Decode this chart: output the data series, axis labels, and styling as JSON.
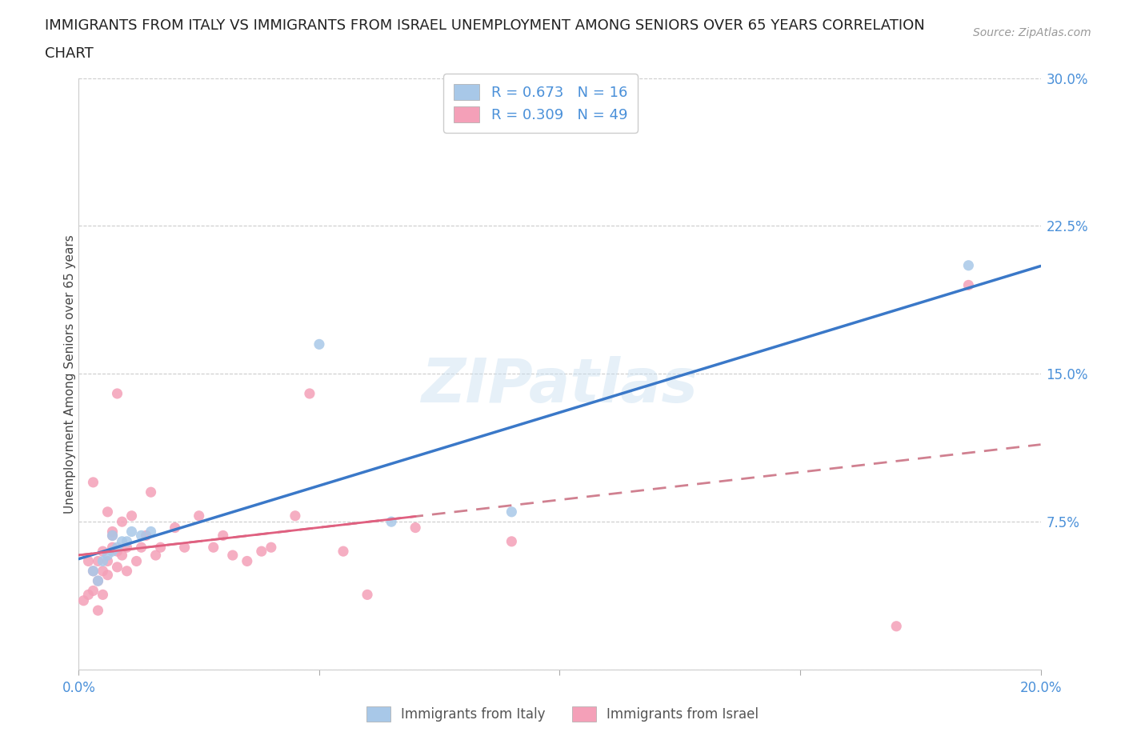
{
  "title_line1": "IMMIGRANTS FROM ITALY VS IMMIGRANTS FROM ISRAEL UNEMPLOYMENT AMONG SENIORS OVER 65 YEARS CORRELATION",
  "title_line2": "CHART",
  "source_text": "Source: ZipAtlas.com",
  "ylabel": "Unemployment Among Seniors over 65 years",
  "xlabel": "",
  "xlim": [
    0.0,
    0.2
  ],
  "ylim": [
    0.0,
    0.3
  ],
  "xticks": [
    0.0,
    0.05,
    0.1,
    0.15,
    0.2
  ],
  "yticks": [
    0.0,
    0.075,
    0.15,
    0.225,
    0.3
  ],
  "italy_color": "#a8c8e8",
  "israel_color": "#f4a0b8",
  "italy_line_color": "#3a78c8",
  "israel_line_color": "#e06080",
  "israel_dashed_color": "#d08090",
  "R_italy": 0.673,
  "N_italy": 16,
  "R_israel": 0.309,
  "N_israel": 49,
  "watermark": "ZIPatlas",
  "italy_scatter_x": [
    0.003,
    0.004,
    0.005,
    0.006,
    0.007,
    0.007,
    0.008,
    0.009,
    0.01,
    0.011,
    0.013,
    0.015,
    0.05,
    0.065,
    0.09,
    0.185
  ],
  "italy_scatter_y": [
    0.05,
    0.045,
    0.055,
    0.058,
    0.06,
    0.068,
    0.062,
    0.065,
    0.065,
    0.07,
    0.068,
    0.07,
    0.165,
    0.075,
    0.08,
    0.205
  ],
  "israel_scatter_x": [
    0.001,
    0.002,
    0.002,
    0.003,
    0.003,
    0.003,
    0.004,
    0.004,
    0.004,
    0.005,
    0.005,
    0.005,
    0.006,
    0.006,
    0.006,
    0.007,
    0.007,
    0.007,
    0.008,
    0.008,
    0.008,
    0.009,
    0.009,
    0.01,
    0.01,
    0.011,
    0.012,
    0.013,
    0.014,
    0.015,
    0.016,
    0.017,
    0.02,
    0.022,
    0.025,
    0.028,
    0.03,
    0.032,
    0.035,
    0.038,
    0.04,
    0.045,
    0.048,
    0.055,
    0.06,
    0.07,
    0.09,
    0.17,
    0.185
  ],
  "israel_scatter_y": [
    0.035,
    0.038,
    0.055,
    0.04,
    0.05,
    0.095,
    0.03,
    0.045,
    0.055,
    0.038,
    0.05,
    0.06,
    0.048,
    0.055,
    0.08,
    0.062,
    0.068,
    0.07,
    0.052,
    0.06,
    0.14,
    0.058,
    0.075,
    0.05,
    0.062,
    0.078,
    0.055,
    0.062,
    0.068,
    0.09,
    0.058,
    0.062,
    0.072,
    0.062,
    0.078,
    0.062,
    0.068,
    0.058,
    0.055,
    0.06,
    0.062,
    0.078,
    0.14,
    0.06,
    0.038,
    0.072,
    0.065,
    0.022,
    0.195
  ],
  "background_color": "#ffffff",
  "grid_color": "#cccccc",
  "tick_color": "#4a90d9",
  "title_fontsize": 13,
  "legend_text_color": "#4a90d9"
}
